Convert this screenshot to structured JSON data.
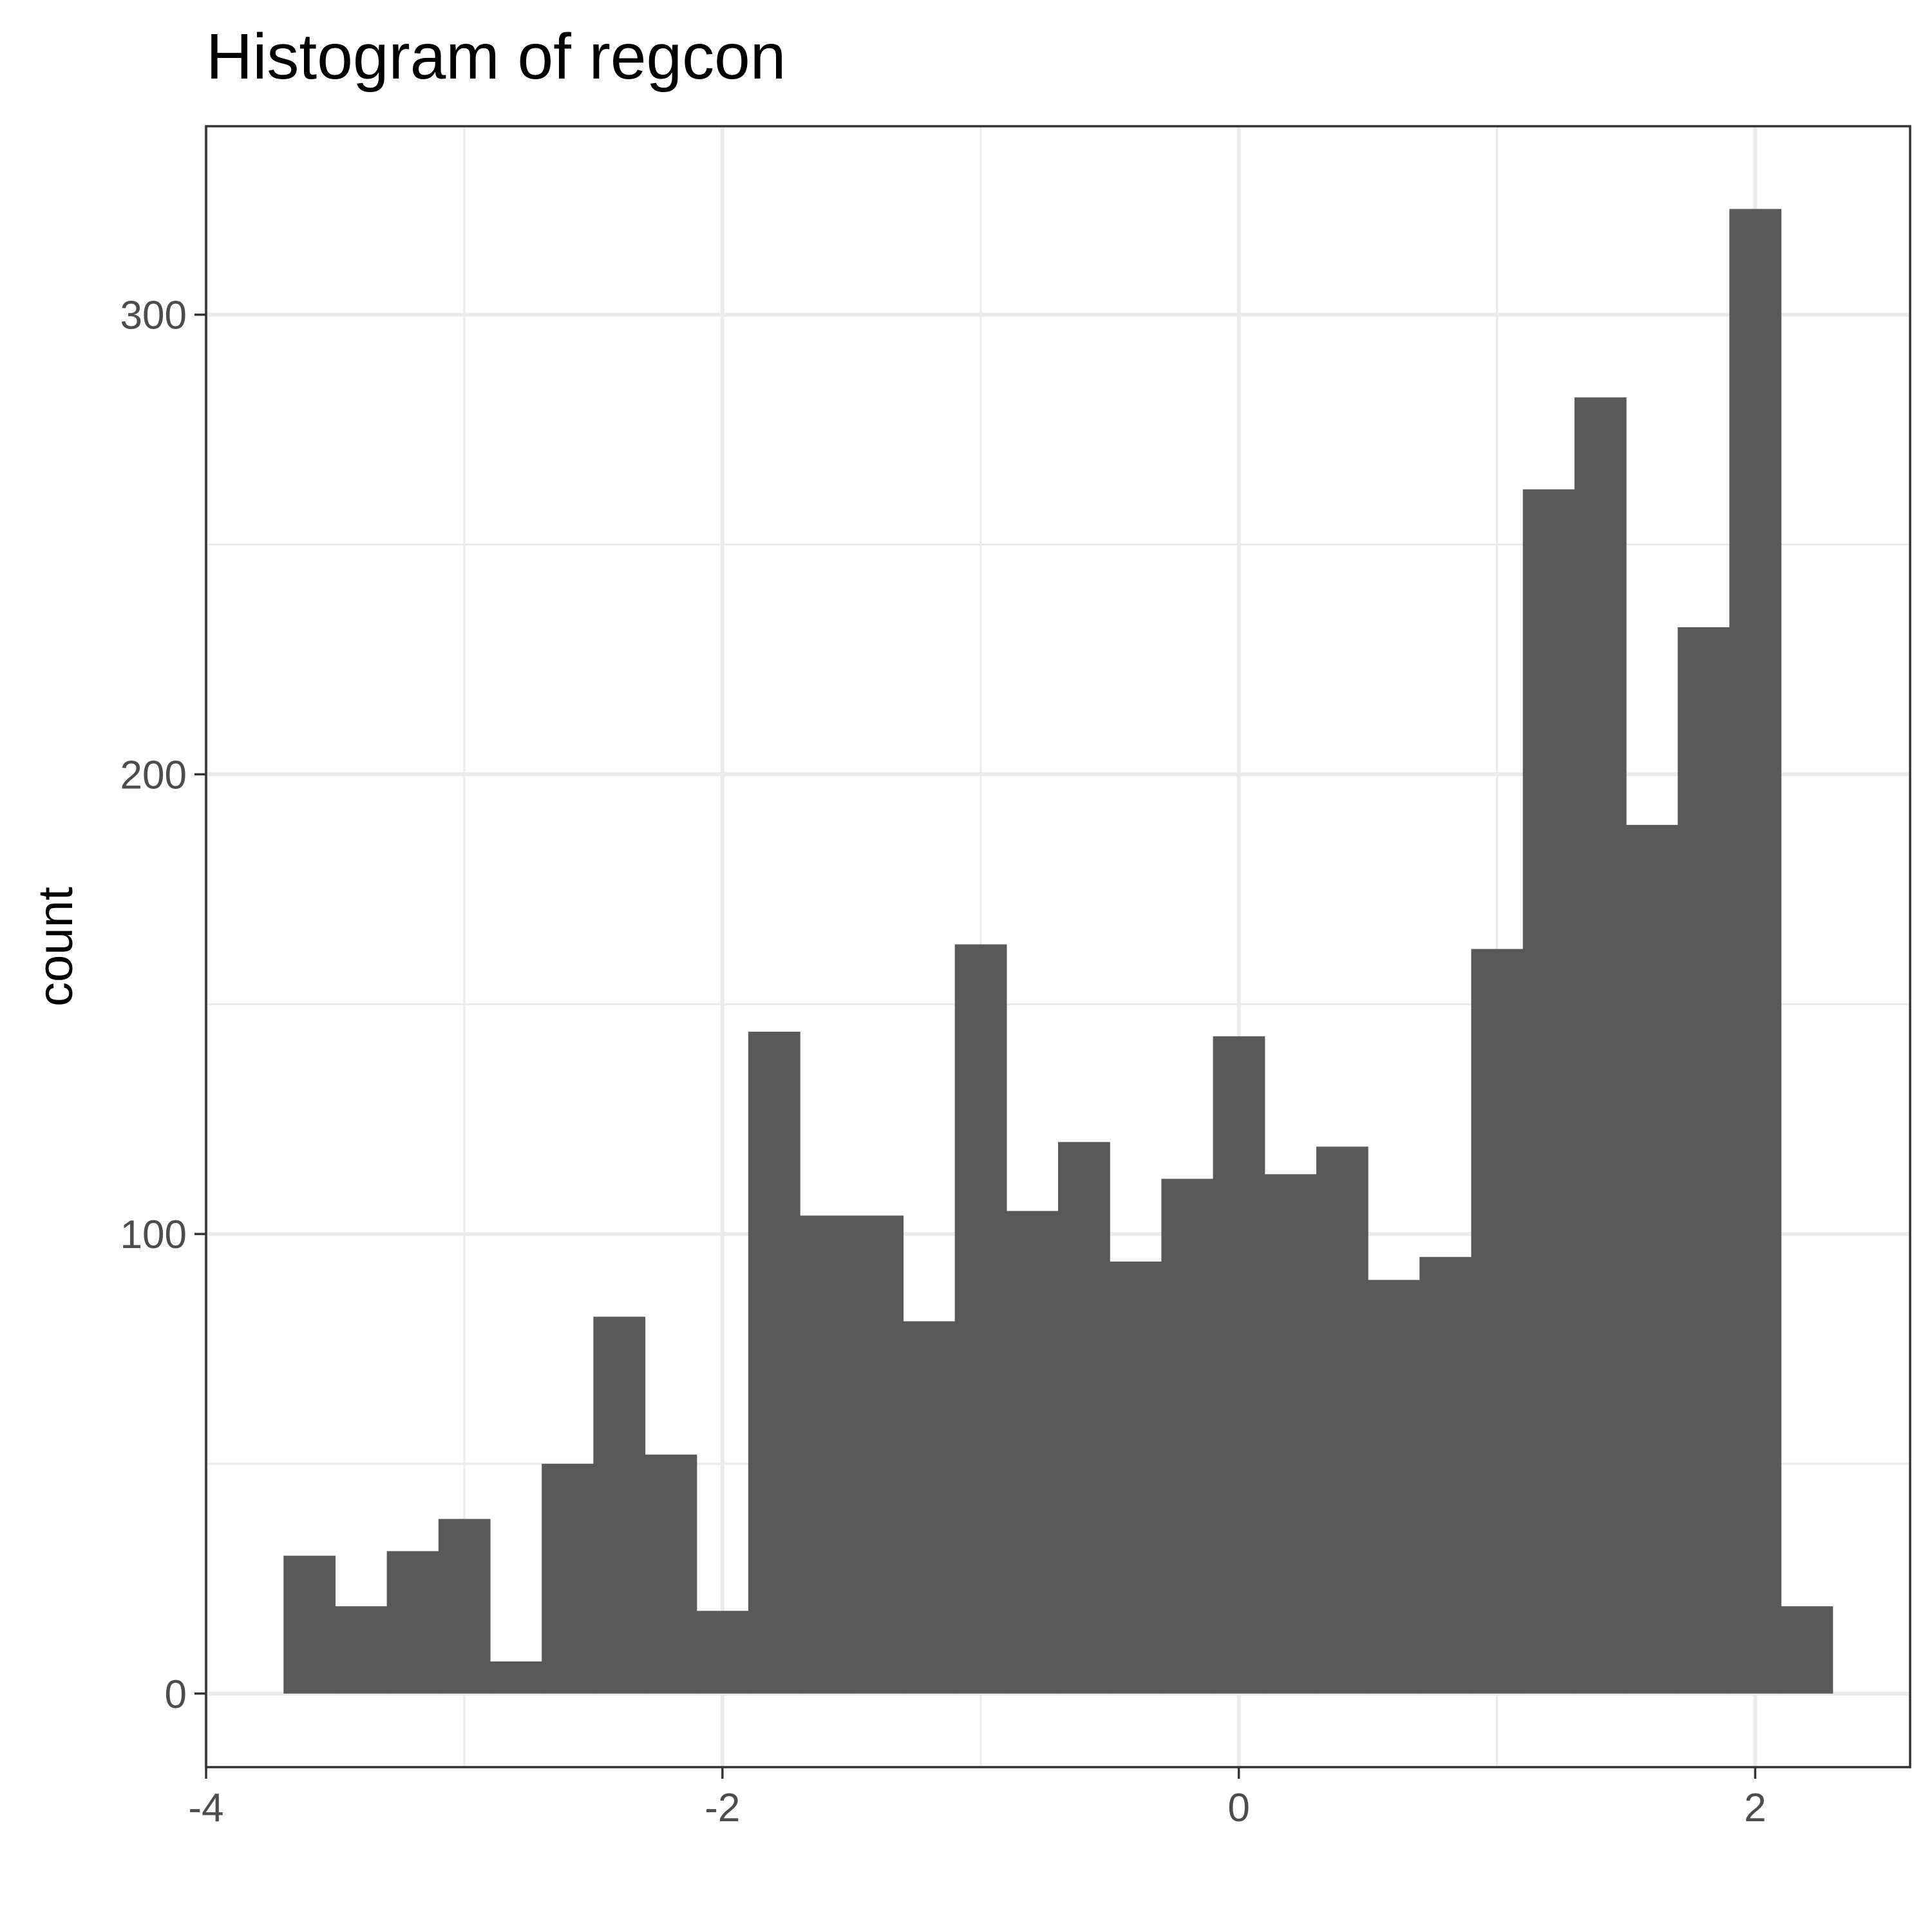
{
  "chart_data": {
    "type": "bar",
    "title": "Histogram of regcon",
    "xlabel": "",
    "ylabel": "count",
    "bar_color": "#595959",
    "grid": true,
    "xlim": [
      -4,
      2.6
    ],
    "ylim": [
      -16,
      341
    ],
    "x_ticks": [
      -4,
      -2,
      0,
      2
    ],
    "x_tick_labels": [
      "-4",
      "-2",
      "0",
      "2"
    ],
    "y_ticks": [
      0,
      100,
      200,
      300
    ],
    "y_tick_labels": [
      "0",
      "100",
      "200",
      "300"
    ],
    "bins": [
      {
        "x0": -3.7,
        "x1": -3.5,
        "count": 30
      },
      {
        "x0": -3.5,
        "x1": -3.3,
        "count": 19
      },
      {
        "x0": -3.3,
        "x1": -3.1,
        "count": 31
      },
      {
        "x0": -3.1,
        "x1": -2.9,
        "count": 38
      },
      {
        "x0": -2.9,
        "x1": -2.7,
        "count": 7
      },
      {
        "x0": -2.7,
        "x1": -2.5,
        "count": 50
      },
      {
        "x0": -2.5,
        "x1": -2.3,
        "count": 82
      },
      {
        "x0": -2.3,
        "x1": -2.1,
        "count": 52
      },
      {
        "x0": -2.1,
        "x1": -1.9,
        "count": 18
      },
      {
        "x0": -1.9,
        "x1": -1.7,
        "count": 144
      },
      {
        "x0": -1.7,
        "x1": -1.5,
        "count": 104
      },
      {
        "x0": -1.5,
        "x1": -1.3,
        "count": 104
      },
      {
        "x0": -1.3,
        "x1": -1.1,
        "count": 81
      },
      {
        "x0": -1.1,
        "x1": -0.9,
        "count": 163
      },
      {
        "x0": -0.9,
        "x1": -0.7,
        "count": 105
      },
      {
        "x0": -0.7,
        "x1": -0.5,
        "count": 120
      },
      {
        "x0": -0.5,
        "x1": -0.3,
        "count": 94
      },
      {
        "x0": -0.3,
        "x1": -0.1,
        "count": 112
      },
      {
        "x0": -0.1,
        "x1": 0.1,
        "count": 143
      },
      {
        "x0": 0.1,
        "x1": 0.3,
        "count": 113
      },
      {
        "x0": 0.3,
        "x1": 0.5,
        "count": 119
      },
      {
        "x0": 0.5,
        "x1": 0.7,
        "count": 90
      },
      {
        "x0": 0.7,
        "x1": 0.9,
        "count": 95
      },
      {
        "x0": 0.9,
        "x1": 1.1,
        "count": 162
      },
      {
        "x0": 1.1,
        "x1": 1.3,
        "count": 262
      },
      {
        "x0": 1.3,
        "x1": 1.5,
        "count": 282
      },
      {
        "x0": 1.5,
        "x1": 1.7,
        "count": 189
      },
      {
        "x0": 1.7,
        "x1": 1.9,
        "count": 232
      },
      {
        "x0": 1.9,
        "x1": 2.1,
        "count": 323
      },
      {
        "x0": 2.1,
        "x1": 2.3,
        "count": 19
      }
    ]
  }
}
